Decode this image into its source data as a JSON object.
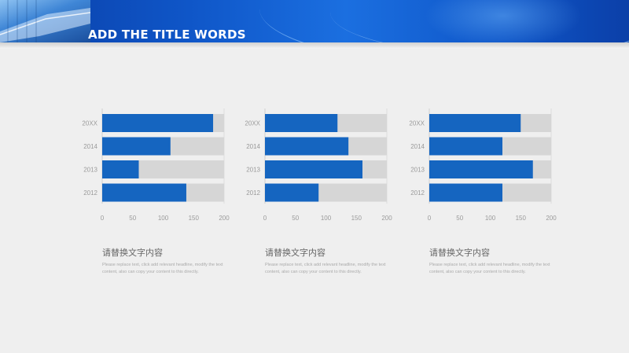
{
  "page": {
    "title": "ADD THE TITLE WORDS"
  },
  "colors": {
    "bar": "#1565c0",
    "track": "#d6d6d6",
    "header": "#0f56c8"
  },
  "chart_data": [
    {
      "type": "bar",
      "orientation": "horizontal",
      "stacked_total": 200,
      "categories": [
        "20XX",
        "2014",
        "2013",
        "2012"
      ],
      "values": [
        182,
        112,
        60,
        138
      ],
      "xlim": [
        0,
        200
      ],
      "xticks": [
        0,
        50,
        100,
        150,
        200
      ],
      "caption_title": "请替换文字内容",
      "caption_body": "Please replace text, click add relevant headline, modify the text content, also can copy your content to this directly."
    },
    {
      "type": "bar",
      "orientation": "horizontal",
      "stacked_total": 200,
      "categories": [
        "20XX",
        "2014",
        "2013",
        "2012"
      ],
      "values": [
        119,
        137,
        160,
        88
      ],
      "xlim": [
        0,
        200
      ],
      "xticks": [
        0,
        50,
        100,
        150,
        200
      ],
      "caption_title": "请替换文字内容",
      "caption_body": "Please replace text, click add relevant headline, modify the text content, also can copy your content to this directly."
    },
    {
      "type": "bar",
      "orientation": "horizontal",
      "stacked_total": 200,
      "categories": [
        "20XX",
        "2014",
        "2013",
        "2012"
      ],
      "values": [
        150,
        120,
        170,
        120
      ],
      "xlim": [
        0,
        200
      ],
      "xticks": [
        0,
        50,
        100,
        150,
        200
      ],
      "caption_title": "请替换文字内容",
      "caption_body": "Please replace text, click add relevant headline, modify the text content, also can copy your content to this directly."
    }
  ]
}
